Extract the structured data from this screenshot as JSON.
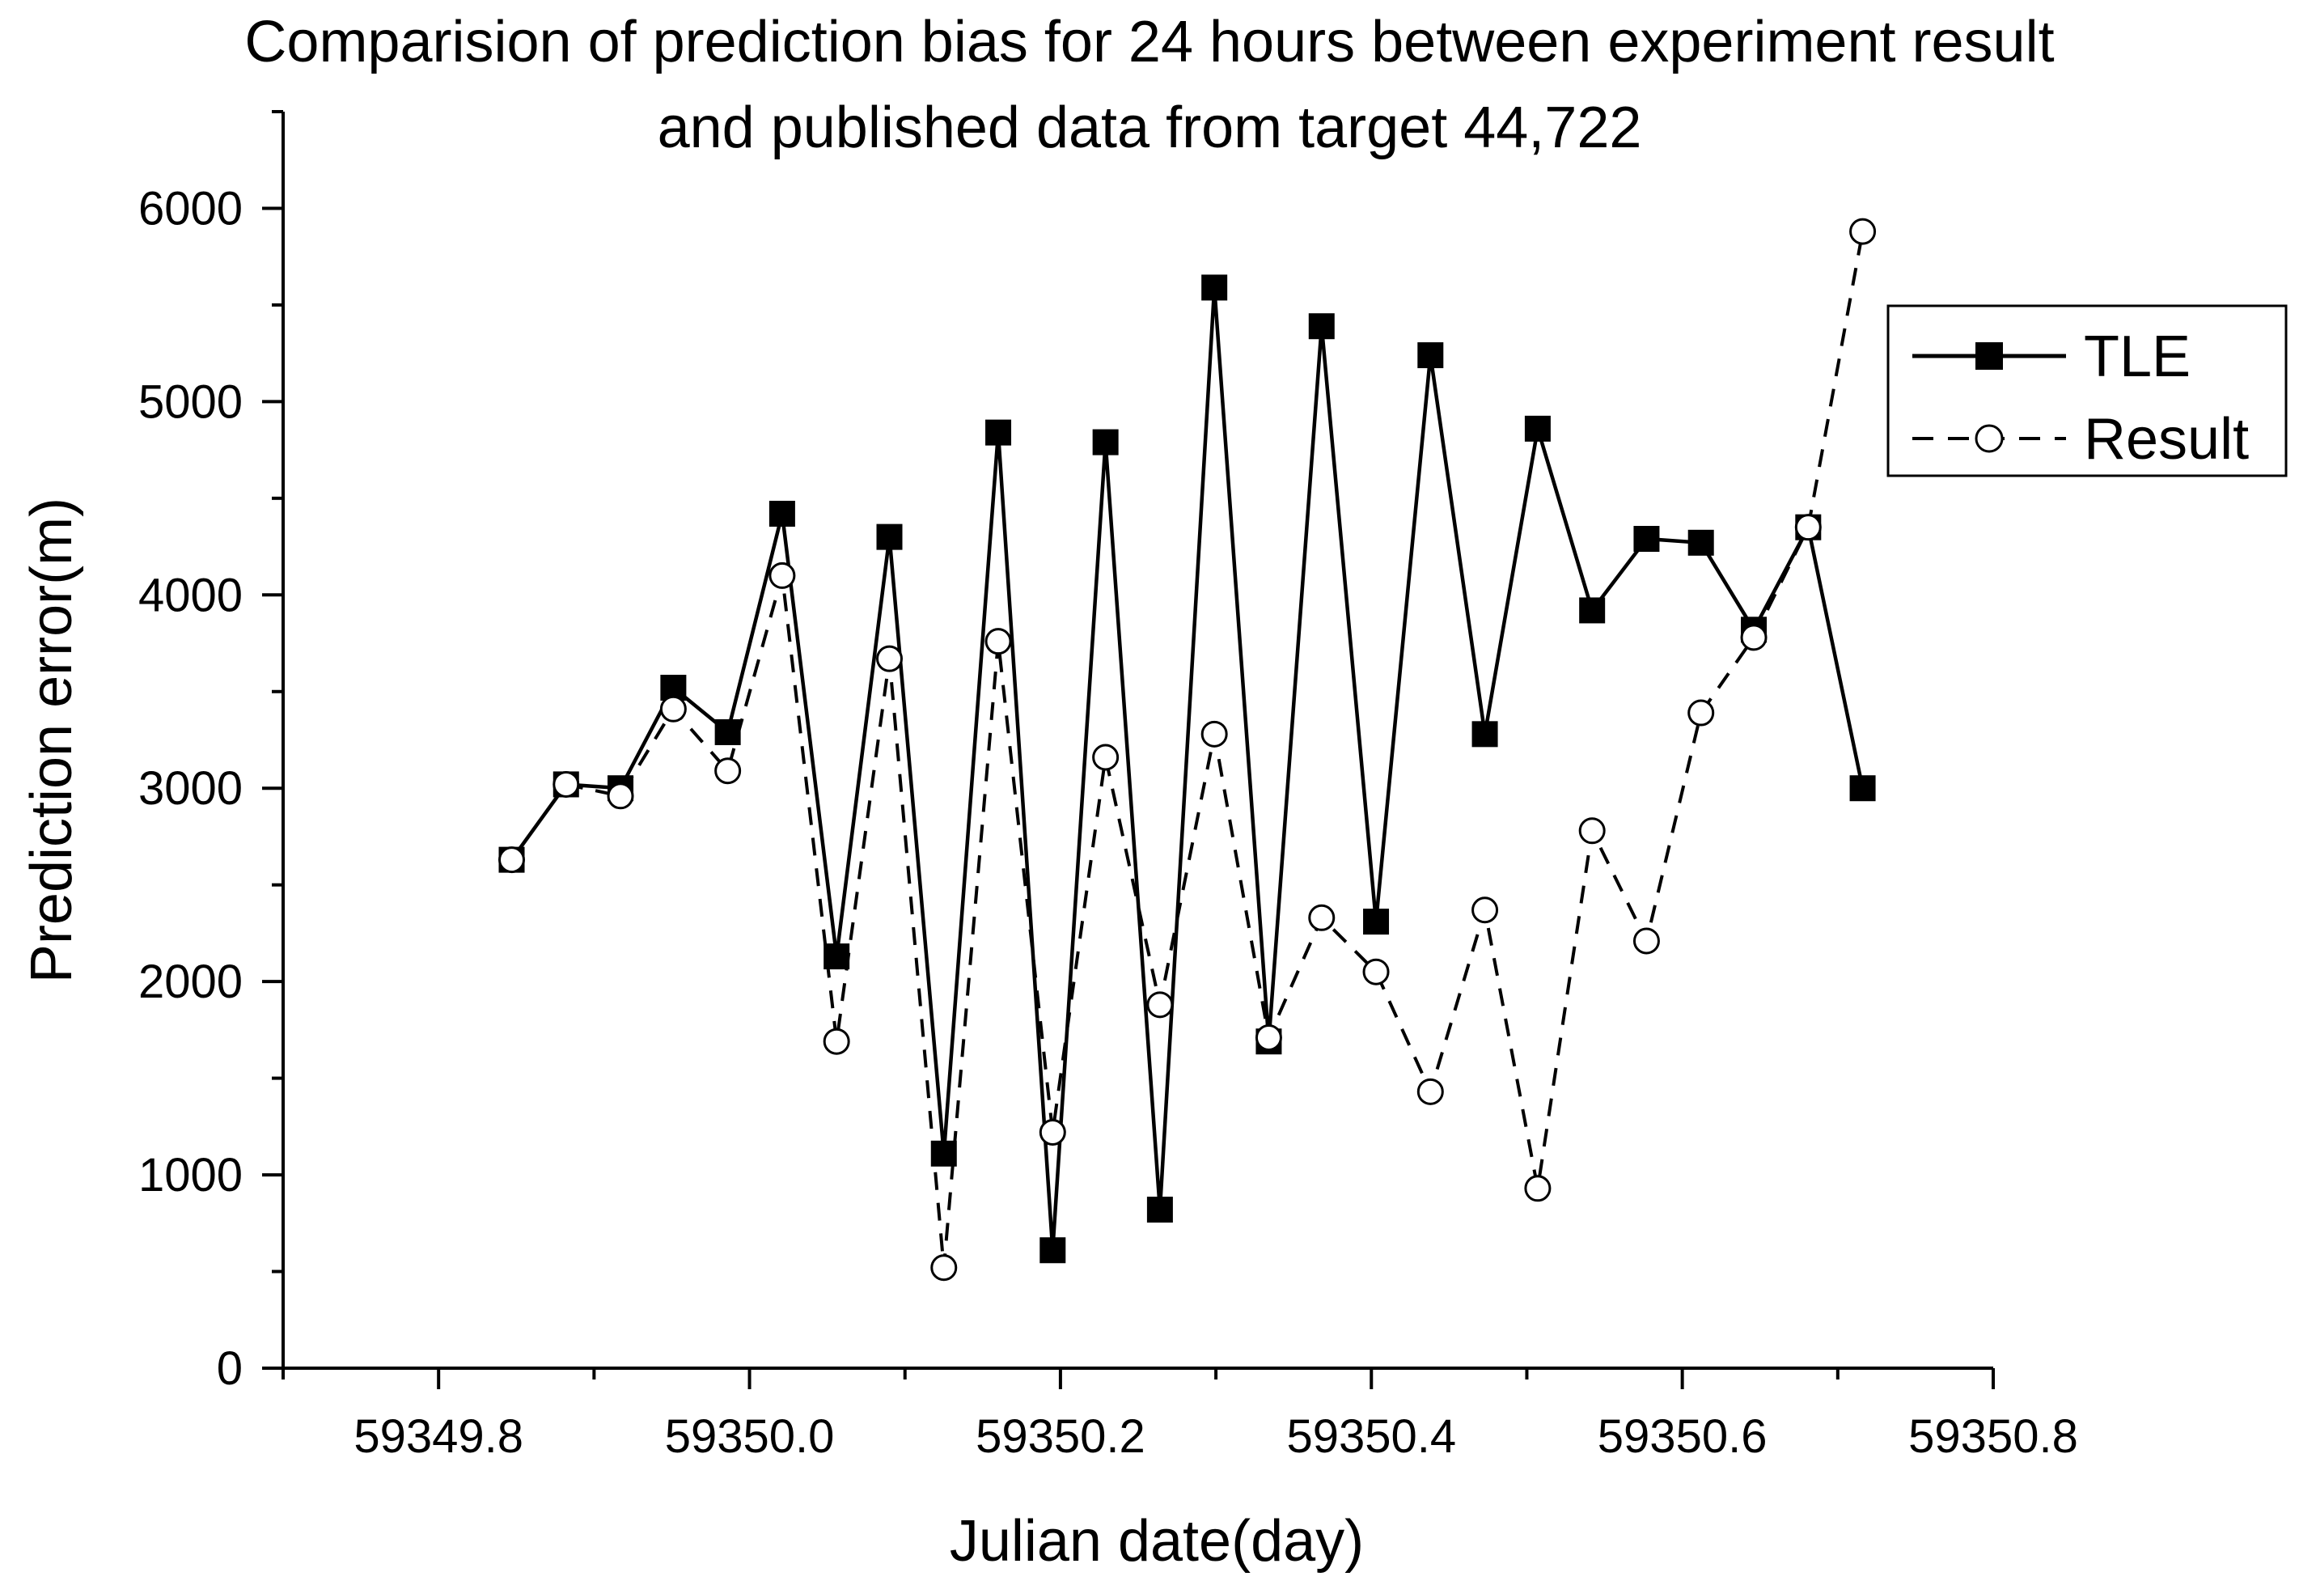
{
  "chart_data": {
    "type": "line",
    "title": "Comparision of prediction bias for 24 hours between experiment result and published data from target 44,722",
    "title_lines": [
      "Comparision of prediction bias for 24 hours between experiment result",
      "and published data from target 44,722"
    ],
    "xlabel": "Julian date(day)",
    "ylabel": "Prediction error(m)",
    "xlim": [
      59349.7,
      59350.8
    ],
    "ylim": [
      0,
      6500
    ],
    "x_ticks": [
      59349.8,
      59350.0,
      59350.2,
      59350.4,
      59350.6,
      59350.8
    ],
    "x_tick_labels": [
      "59349.8",
      "59350.0",
      "59350.2",
      "59350.4",
      "59350.6",
      "59350.8"
    ],
    "y_ticks": [
      0,
      1000,
      2000,
      3000,
      4000,
      5000,
      6000
    ],
    "y_tick_labels": [
      "0",
      "1000",
      "2000",
      "3000",
      "4000",
      "5000",
      "6000"
    ],
    "grid": false,
    "legend_position": "top-right",
    "series": [
      {
        "name": "TLE",
        "line_style": "solid",
        "marker": "filled-square",
        "color": "#000000",
        "x": [
          59349.847,
          59349.882,
          59349.917,
          59349.951,
          59349.986,
          59350.021,
          59350.056,
          59350.09,
          59350.125,
          59350.16,
          59350.195,
          59350.229,
          59350.264,
          59350.299,
          59350.334,
          59350.368,
          59350.403,
          59350.438,
          59350.473,
          59350.507,
          59350.542,
          59350.577,
          59350.612,
          59350.646,
          59350.681,
          59350.716
        ],
        "y": [
          2630,
          3020,
          3000,
          3520,
          3290,
          4420,
          2130,
          4300,
          1110,
          4840,
          610,
          4790,
          820,
          5590,
          1690,
          5390,
          2310,
          5240,
          3280,
          4860,
          3920,
          4290,
          4270,
          3820,
          4350,
          3000
        ]
      },
      {
        "name": "Result",
        "line_style": "dashed",
        "marker": "open-circle",
        "color": "#000000",
        "x": [
          59349.847,
          59349.882,
          59349.917,
          59349.951,
          59349.986,
          59350.021,
          59350.056,
          59350.09,
          59350.125,
          59350.16,
          59350.195,
          59350.229,
          59350.264,
          59350.299,
          59350.334,
          59350.368,
          59350.403,
          59350.438,
          59350.473,
          59350.507,
          59350.542,
          59350.577,
          59350.612,
          59350.646,
          59350.681,
          59350.716
        ],
        "y": [
          2630,
          3020,
          2960,
          3410,
          3090,
          4100,
          1690,
          3670,
          520,
          3760,
          1220,
          3160,
          1880,
          3280,
          1710,
          2330,
          2050,
          1430,
          2370,
          930,
          2780,
          2210,
          3390,
          3780,
          4350,
          5880
        ]
      }
    ]
  }
}
